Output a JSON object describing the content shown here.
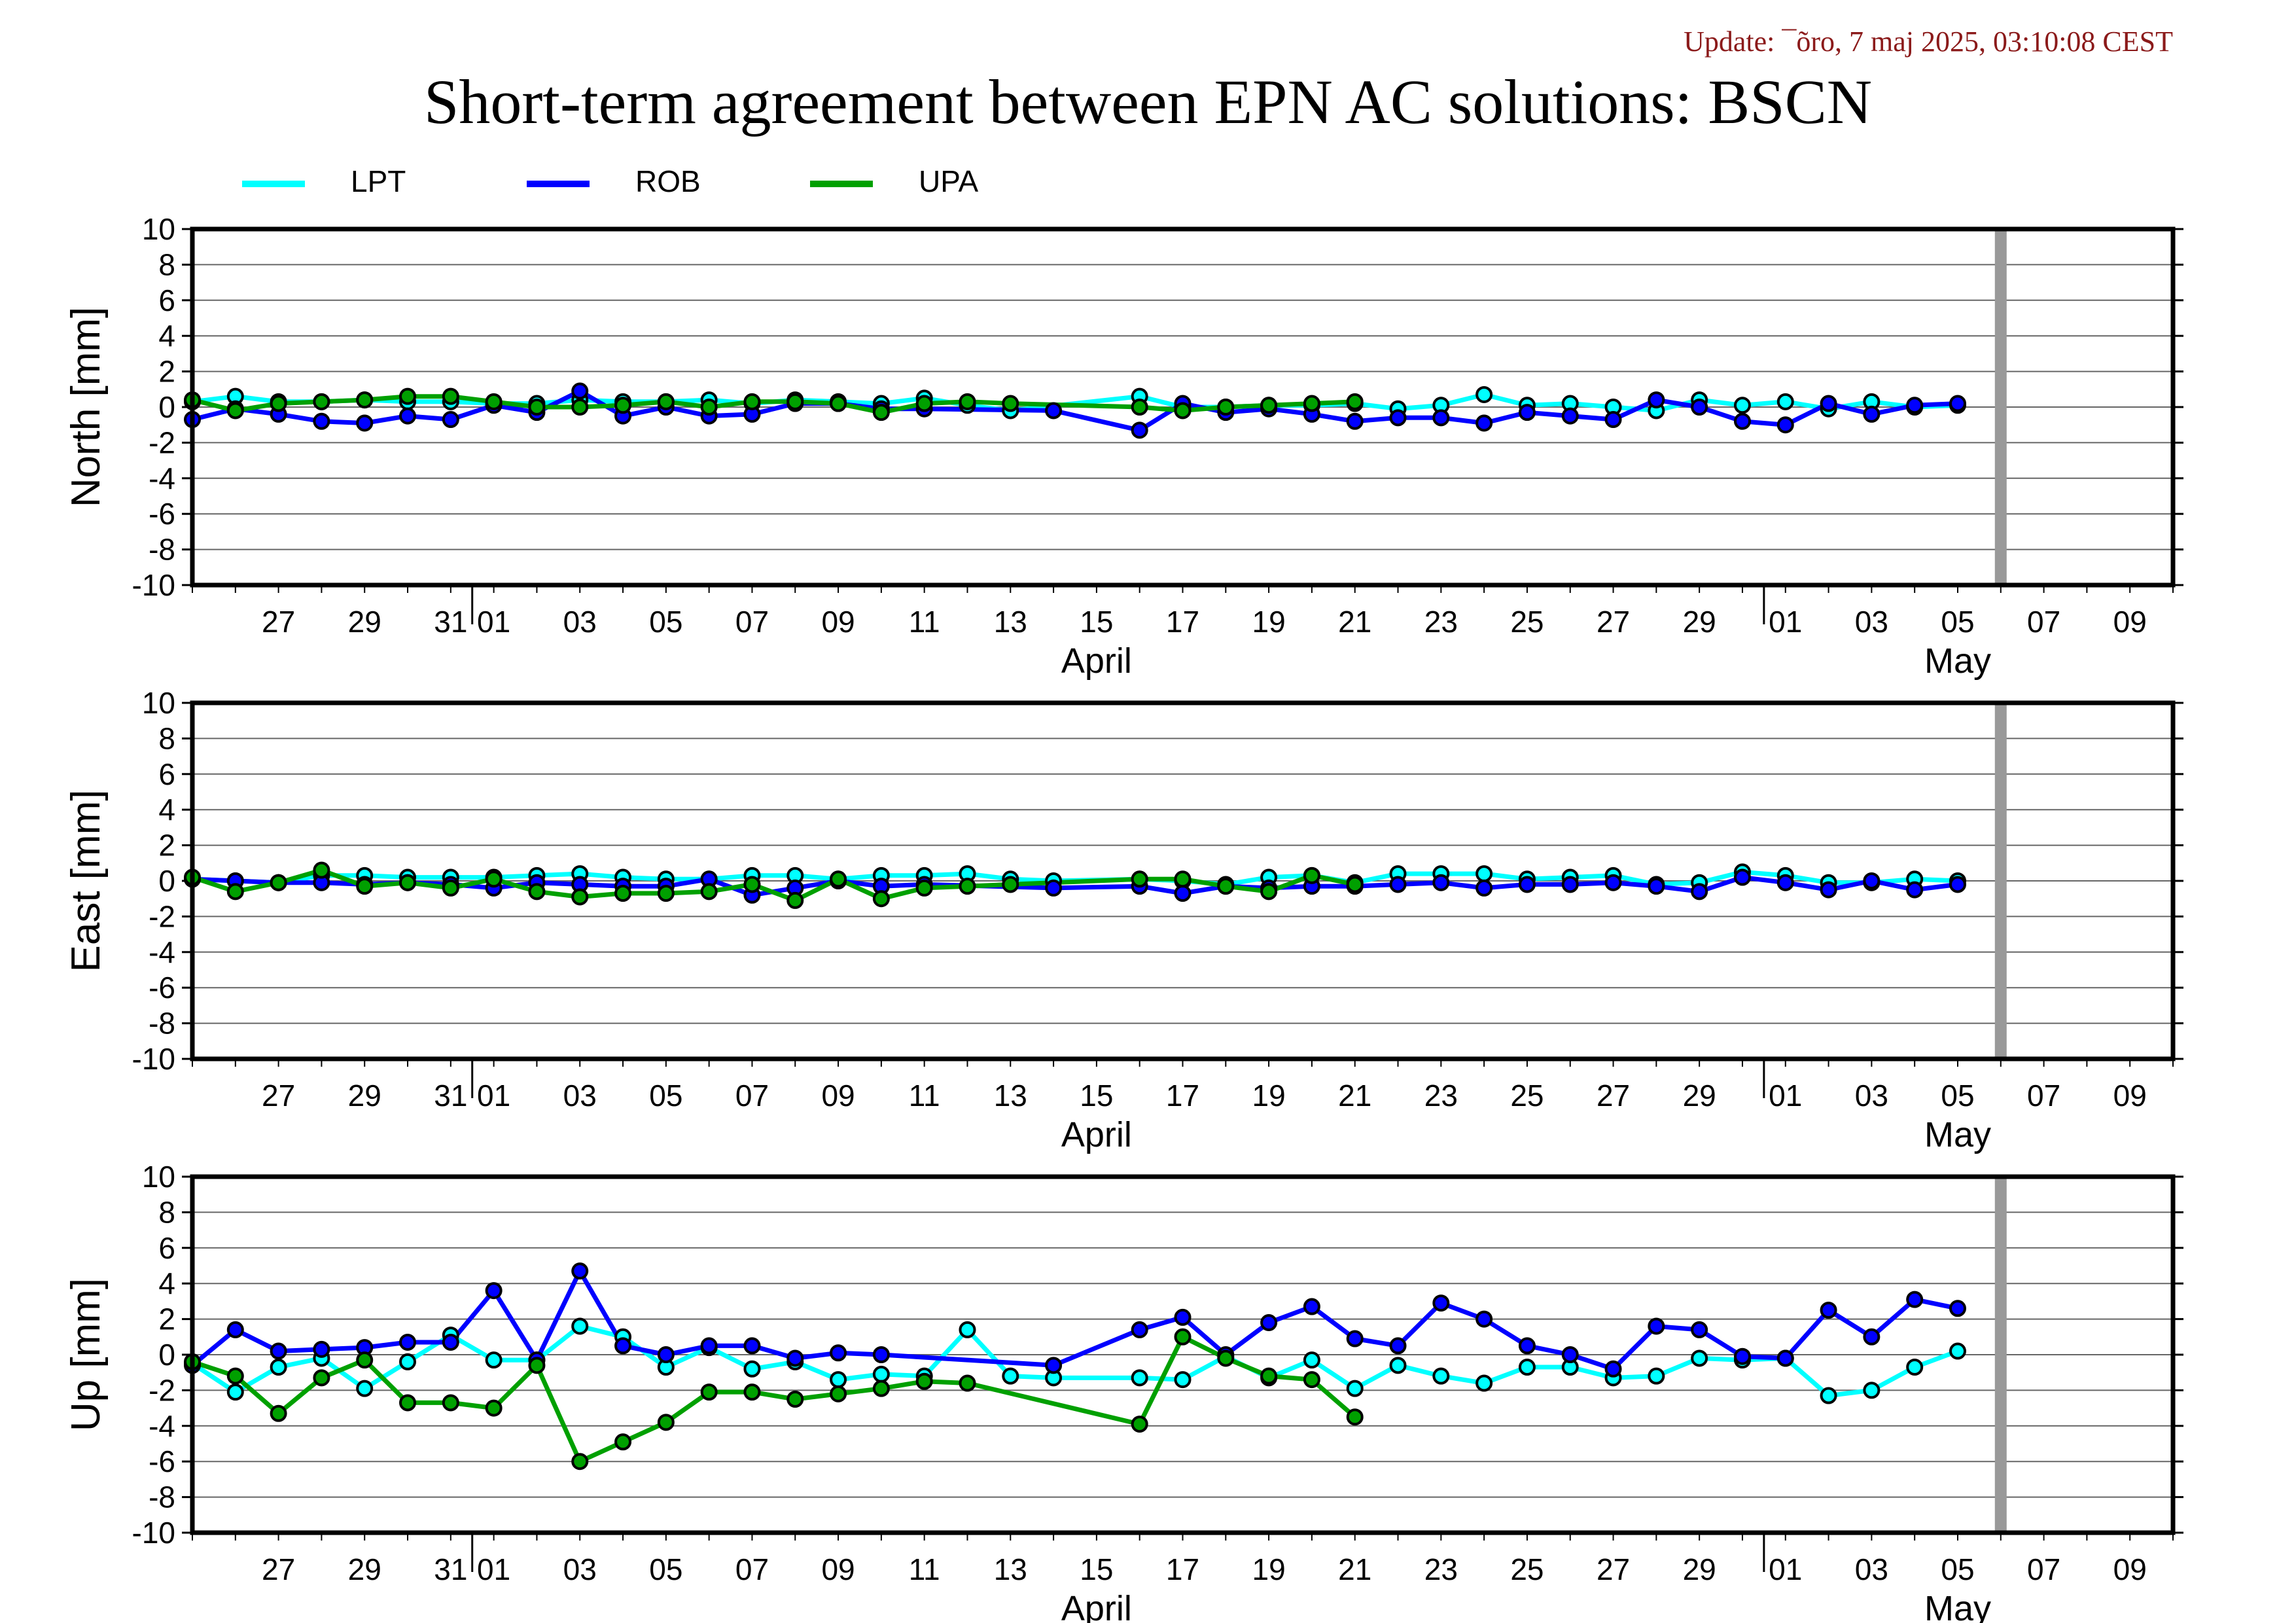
{
  "header": {
    "update": "Update: ¯õro, 7 maj 2025, 03:10:08 CEST",
    "title": "Short-term agreement between EPN AC solutions: BSCN"
  },
  "colors": {
    "LPT": "#00ffff",
    "ROB": "#0000ff",
    "UPA": "#00a000",
    "grid": "#666666",
    "gap_bar": "#999999"
  },
  "chart_data": {
    "type": "line",
    "series_names": [
      "LPT",
      "ROB",
      "UPA"
    ],
    "x_range": [
      "2025-03-25",
      "2025-05-10"
    ],
    "x_tick_dates": [
      "2025-03-27",
      "2025-03-29",
      "2025-03-31",
      "2025-04-01",
      "2025-04-03",
      "2025-04-05",
      "2025-04-07",
      "2025-04-09",
      "2025-04-11",
      "2025-04-13",
      "2025-04-15",
      "2025-04-17",
      "2025-04-19",
      "2025-04-21",
      "2025-04-23",
      "2025-04-25",
      "2025-04-27",
      "2025-04-29",
      "2025-05-01",
      "2025-05-03",
      "2025-05-05",
      "2025-05-07",
      "2025-05-09"
    ],
    "x_tick_labels": [
      "27",
      "29",
      "31",
      "01",
      "03",
      "05",
      "07",
      "09",
      "11",
      "13",
      "15",
      "17",
      "19",
      "21",
      "23",
      "25",
      "27",
      "29",
      "01",
      "03",
      "05",
      "07",
      "09"
    ],
    "month_labels": [
      {
        "label": "April",
        "date": "2025-04-15"
      },
      {
        "label": "May",
        "date": "2025-05-05"
      }
    ],
    "month_boundaries": [
      "2025-04-01",
      "2025-05-01"
    ],
    "gap_marker_date": "2025-05-06",
    "ylim": [
      -10,
      10
    ],
    "yticks": [
      10,
      8,
      6,
      4,
      2,
      0,
      -2,
      -4,
      -6,
      -8,
      -10
    ],
    "panels": [
      {
        "ylabel": "North [mm]",
        "series": [
          {
            "name": "LPT",
            "x": [
              "2025-03-25",
              "2025-03-26",
              "2025-03-27",
              "2025-03-28",
              "2025-03-29",
              "2025-03-30",
              "2025-03-31",
              "2025-04-01",
              "2025-04-02",
              "2025-04-03",
              "2025-04-04",
              "2025-04-05",
              "2025-04-06",
              "2025-04-07",
              "2025-04-08",
              "2025-04-09",
              "2025-04-10",
              "2025-04-11",
              "2025-04-12",
              "2025-04-13",
              "2025-04-16",
              "2025-04-17",
              "2025-04-18",
              "2025-04-19",
              "2025-04-20",
              "2025-04-21",
              "2025-04-22",
              "2025-04-23",
              "2025-04-24",
              "2025-04-25",
              "2025-04-26",
              "2025-04-27",
              "2025-04-28",
              "2025-04-29",
              "2025-04-30",
              "2025-05-01",
              "2025-05-02",
              "2025-05-03",
              "2025-05-04",
              "2025-05-05"
            ],
            "y": [
              0.3,
              0.6,
              0.3,
              0.3,
              0.4,
              0.3,
              0.3,
              0.2,
              0.2,
              0.4,
              0.3,
              0.3,
              0.4,
              0.2,
              0.4,
              0.3,
              0.2,
              0.5,
              0.1,
              -0.2,
              0.6,
              0.0,
              0.0,
              0.1,
              0.1,
              0.2,
              -0.1,
              0.1,
              0.7,
              0.1,
              0.2,
              0.0,
              -0.2,
              0.4,
              0.1,
              0.3,
              -0.1,
              0.3,
              0.0,
              0.1
            ]
          },
          {
            "name": "ROB",
            "x": [
              "2025-03-25",
              "2025-03-26",
              "2025-03-27",
              "2025-03-28",
              "2025-03-29",
              "2025-03-30",
              "2025-03-31",
              "2025-04-01",
              "2025-04-02",
              "2025-04-03",
              "2025-04-04",
              "2025-04-05",
              "2025-04-06",
              "2025-04-07",
              "2025-04-08",
              "2025-04-09",
              "2025-04-10",
              "2025-04-11",
              "2025-04-14",
              "2025-04-16",
              "2025-04-17",
              "2025-04-18",
              "2025-04-19",
              "2025-04-20",
              "2025-04-21",
              "2025-04-22",
              "2025-04-23",
              "2025-04-24",
              "2025-04-25",
              "2025-04-26",
              "2025-04-27",
              "2025-04-28",
              "2025-04-29",
              "2025-04-30",
              "2025-05-01",
              "2025-05-02",
              "2025-05-03",
              "2025-05-04",
              "2025-05-05"
            ],
            "y": [
              -0.7,
              -0.1,
              -0.4,
              -0.8,
              -0.9,
              -0.5,
              -0.7,
              0.1,
              -0.3,
              0.9,
              -0.5,
              0.0,
              -0.5,
              -0.4,
              0.2,
              0.2,
              -0.1,
              -0.1,
              -0.2,
              -1.3,
              0.2,
              -0.3,
              -0.1,
              -0.4,
              -0.8,
              -0.6,
              -0.6,
              -0.9,
              -0.3,
              -0.5,
              -0.7,
              0.4,
              0.0,
              -0.8,
              -1.0,
              0.2,
              -0.4,
              0.1,
              0.2
            ]
          },
          {
            "name": "UPA",
            "x": [
              "2025-03-25",
              "2025-03-26",
              "2025-03-27",
              "2025-03-28",
              "2025-03-29",
              "2025-03-30",
              "2025-03-31",
              "2025-04-01",
              "2025-04-02",
              "2025-04-03",
              "2025-04-04",
              "2025-04-05",
              "2025-04-06",
              "2025-04-07",
              "2025-04-08",
              "2025-04-09",
              "2025-04-10",
              "2025-04-11",
              "2025-04-12",
              "2025-04-13",
              "2025-04-16",
              "2025-04-17",
              "2025-04-18",
              "2025-04-19",
              "2025-04-20",
              "2025-04-21"
            ],
            "y": [
              0.4,
              -0.2,
              0.2,
              0.3,
              0.4,
              0.6,
              0.6,
              0.3,
              0.0,
              0.0,
              0.1,
              0.3,
              0.0,
              0.3,
              0.3,
              0.2,
              -0.3,
              0.2,
              0.3,
              0.2,
              0.0,
              -0.2,
              0.0,
              0.1,
              0.2,
              0.3
            ]
          }
        ]
      },
      {
        "ylabel": "East [mm]",
        "series": [
          {
            "name": "LPT",
            "x": [
              "2025-03-25",
              "2025-03-26",
              "2025-03-27",
              "2025-03-28",
              "2025-03-29",
              "2025-03-30",
              "2025-03-31",
              "2025-04-01",
              "2025-04-02",
              "2025-04-03",
              "2025-04-04",
              "2025-04-05",
              "2025-04-06",
              "2025-04-07",
              "2025-04-08",
              "2025-04-09",
              "2025-04-10",
              "2025-04-11",
              "2025-04-12",
              "2025-04-13",
              "2025-04-14",
              "2025-04-16",
              "2025-04-17",
              "2025-04-18",
              "2025-04-19",
              "2025-04-20",
              "2025-04-21",
              "2025-04-22",
              "2025-04-23",
              "2025-04-24",
              "2025-04-25",
              "2025-04-26",
              "2025-04-27",
              "2025-04-28",
              "2025-04-29",
              "2025-04-30",
              "2025-05-01",
              "2025-05-02",
              "2025-05-03",
              "2025-05-04",
              "2025-05-05"
            ],
            "y": [
              0.1,
              0.0,
              -0.1,
              0.3,
              0.3,
              0.2,
              0.2,
              0.2,
              0.3,
              0.4,
              0.2,
              0.1,
              0.1,
              0.3,
              0.3,
              0.1,
              0.3,
              0.3,
              0.4,
              0.1,
              0.0,
              0.1,
              0.0,
              -0.2,
              0.2,
              0.3,
              -0.1,
              0.4,
              0.4,
              0.4,
              0.1,
              0.2,
              0.3,
              -0.2,
              -0.1,
              0.5,
              0.3,
              -0.1,
              -0.1,
              0.1,
              0.0
            ]
          },
          {
            "name": "ROB",
            "x": [
              "2025-03-25",
              "2025-03-26",
              "2025-03-27",
              "2025-03-28",
              "2025-03-29",
              "2025-03-30",
              "2025-03-31",
              "2025-04-01",
              "2025-04-02",
              "2025-04-03",
              "2025-04-04",
              "2025-04-05",
              "2025-04-06",
              "2025-04-07",
              "2025-04-08",
              "2025-04-09",
              "2025-04-10",
              "2025-04-11",
              "2025-04-14",
              "2025-04-16",
              "2025-04-17",
              "2025-04-18",
              "2025-04-19",
              "2025-04-20",
              "2025-04-21",
              "2025-04-22",
              "2025-04-23",
              "2025-04-24",
              "2025-04-25",
              "2025-04-26",
              "2025-04-27",
              "2025-04-28",
              "2025-04-29",
              "2025-04-30",
              "2025-05-01",
              "2025-05-02",
              "2025-05-03",
              "2025-05-04",
              "2025-05-05"
            ],
            "y": [
              0.1,
              0.0,
              -0.1,
              -0.1,
              -0.2,
              -0.1,
              -0.2,
              -0.4,
              -0.1,
              -0.2,
              -0.3,
              -0.3,
              0.1,
              -0.8,
              -0.4,
              0.0,
              -0.3,
              -0.2,
              -0.4,
              -0.3,
              -0.7,
              -0.3,
              -0.4,
              -0.3,
              -0.3,
              -0.2,
              -0.1,
              -0.4,
              -0.2,
              -0.2,
              -0.1,
              -0.3,
              -0.6,
              0.2,
              -0.1,
              -0.5,
              0.0,
              -0.5,
              -0.2
            ]
          },
          {
            "name": "UPA",
            "x": [
              "2025-03-25",
              "2025-03-26",
              "2025-03-27",
              "2025-03-28",
              "2025-03-29",
              "2025-03-30",
              "2025-03-31",
              "2025-04-01",
              "2025-04-02",
              "2025-04-03",
              "2025-04-04",
              "2025-04-05",
              "2025-04-06",
              "2025-04-07",
              "2025-04-08",
              "2025-04-09",
              "2025-04-10",
              "2025-04-11",
              "2025-04-12",
              "2025-04-13",
              "2025-04-16",
              "2025-04-17",
              "2025-04-18",
              "2025-04-19",
              "2025-04-20",
              "2025-04-21"
            ],
            "y": [
              0.2,
              -0.6,
              -0.1,
              0.6,
              -0.3,
              -0.1,
              -0.4,
              0.1,
              -0.6,
              -0.9,
              -0.7,
              -0.7,
              -0.6,
              -0.2,
              -1.1,
              0.1,
              -1.0,
              -0.4,
              -0.3,
              -0.2,
              0.1,
              0.1,
              -0.3,
              -0.6,
              0.3,
              -0.2
            ]
          }
        ]
      },
      {
        "ylabel": "Up [mm]",
        "series": [
          {
            "name": "LPT",
            "x": [
              "2025-03-25",
              "2025-03-26",
              "2025-03-27",
              "2025-03-28",
              "2025-03-29",
              "2025-03-30",
              "2025-03-31",
              "2025-04-01",
              "2025-04-02",
              "2025-04-03",
              "2025-04-04",
              "2025-04-05",
              "2025-04-06",
              "2025-04-07",
              "2025-04-08",
              "2025-04-09",
              "2025-04-10",
              "2025-04-11",
              "2025-04-12",
              "2025-04-13",
              "2025-04-14",
              "2025-04-16",
              "2025-04-17",
              "2025-04-18",
              "2025-04-19",
              "2025-04-20",
              "2025-04-21",
              "2025-04-22",
              "2025-04-23",
              "2025-04-24",
              "2025-04-25",
              "2025-04-26",
              "2025-04-27",
              "2025-04-28",
              "2025-04-29",
              "2025-04-30",
              "2025-05-01",
              "2025-05-02",
              "2025-05-03",
              "2025-05-04",
              "2025-05-05"
            ],
            "y": [
              -0.5,
              -2.1,
              -0.7,
              -0.2,
              -1.9,
              -0.4,
              1.1,
              -0.3,
              -0.3,
              1.6,
              1.0,
              -0.7,
              0.4,
              -0.8,
              -0.4,
              -1.4,
              -1.1,
              -1.2,
              1.4,
              -1.2,
              -1.3,
              -1.3,
              -1.4,
              -0.1,
              -1.3,
              -0.3,
              -1.9,
              -0.6,
              -1.2,
              -1.6,
              -0.7,
              -0.7,
              -1.3,
              -1.2,
              -0.2,
              -0.3,
              -0.2,
              -2.3,
              -2.0,
              -0.7,
              0.2
            ]
          },
          {
            "name": "ROB",
            "x": [
              "2025-03-25",
              "2025-03-26",
              "2025-03-27",
              "2025-03-28",
              "2025-03-29",
              "2025-03-30",
              "2025-03-31",
              "2025-04-01",
              "2025-04-02",
              "2025-04-03",
              "2025-04-04",
              "2025-04-05",
              "2025-04-06",
              "2025-04-07",
              "2025-04-08",
              "2025-04-09",
              "2025-04-10",
              "2025-04-14",
              "2025-04-16",
              "2025-04-17",
              "2025-04-18",
              "2025-04-19",
              "2025-04-20",
              "2025-04-21",
              "2025-04-22",
              "2025-04-23",
              "2025-04-24",
              "2025-04-25",
              "2025-04-26",
              "2025-04-27",
              "2025-04-28",
              "2025-04-29",
              "2025-04-30",
              "2025-05-01",
              "2025-05-02",
              "2025-05-03",
              "2025-05-04",
              "2025-05-05"
            ],
            "y": [
              -0.6,
              1.4,
              0.2,
              0.3,
              0.4,
              0.7,
              0.7,
              3.6,
              -0.3,
              4.7,
              0.5,
              0.0,
              0.5,
              0.5,
              -0.2,
              0.1,
              0.0,
              -0.6,
              1.4,
              2.1,
              0.0,
              1.8,
              2.7,
              0.9,
              0.5,
              2.9,
              2.0,
              0.5,
              0.0,
              -0.8,
              1.6,
              1.4,
              -0.1,
              -0.2,
              2.5,
              1.0,
              3.1,
              2.6
            ]
          },
          {
            "name": "UPA",
            "x": [
              "2025-03-25",
              "2025-03-26",
              "2025-03-27",
              "2025-03-28",
              "2025-03-29",
              "2025-03-30",
              "2025-03-31",
              "2025-04-01",
              "2025-04-02",
              "2025-04-03",
              "2025-04-04",
              "2025-04-05",
              "2025-04-06",
              "2025-04-07",
              "2025-04-08",
              "2025-04-09",
              "2025-04-10",
              "2025-04-11",
              "2025-04-12",
              "2025-04-16",
              "2025-04-17",
              "2025-04-18",
              "2025-04-19",
              "2025-04-20",
              "2025-04-21"
            ],
            "y": [
              -0.4,
              -1.2,
              -3.3,
              -1.3,
              -0.3,
              -2.7,
              -2.7,
              -3.0,
              -0.6,
              -6.0,
              -4.9,
              -3.8,
              -2.1,
              -2.1,
              -2.5,
              -2.2,
              -1.9,
              -1.5,
              -1.6,
              -3.9,
              1.0,
              -0.2,
              -1.2,
              -1.4,
              -3.5
            ]
          }
        ]
      }
    ]
  }
}
